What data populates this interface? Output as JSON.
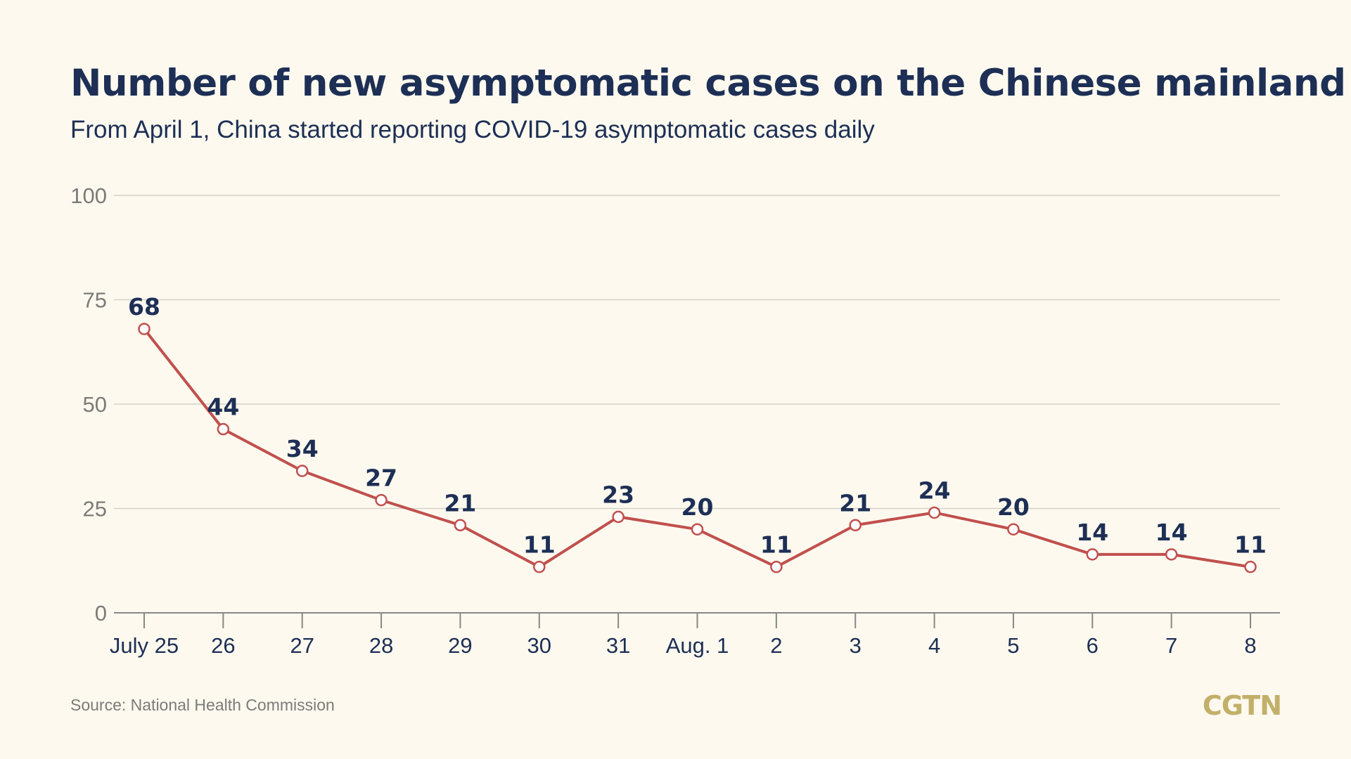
{
  "title": "Number of new asymptomatic cases on the Chinese mainland",
  "subtitle": "From April 1, China started reporting COVID-19 asymptomatic cases daily",
  "source": "Source: National Health Commission",
  "logo_text": "CGTN",
  "colors": {
    "background": "#fdf9ef",
    "title": "#1d2f55",
    "line": "#c0504d",
    "grid": "#d4d2c8",
    "axis": "#888884",
    "logo": "#c2b06a"
  },
  "chart_data": {
    "type": "line",
    "categories": [
      "July 25",
      "26",
      "27",
      "28",
      "29",
      "30",
      "31",
      "Aug. 1",
      "2",
      "3",
      "4",
      "5",
      "6",
      "7",
      "8"
    ],
    "series": [
      {
        "values": [
          68,
          44,
          34,
          27,
          21,
          11,
          23,
          20,
          11,
          21,
          24,
          20,
          14,
          14,
          11
        ]
      }
    ],
    "ylim": [
      0,
      100
    ],
    "yticks": [
      0,
      25,
      50,
      75,
      100
    ],
    "grid": true,
    "data_labels": true
  }
}
